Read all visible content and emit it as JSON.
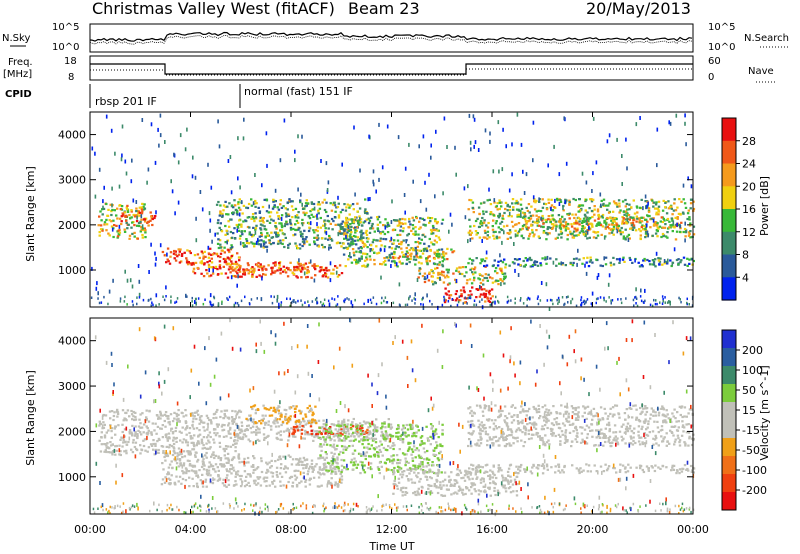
{
  "header": {
    "station": "Christmas Valley West (fitACF)",
    "beam": "Beam 23",
    "date": "20/May/2013"
  },
  "top_panels": {
    "nsky_label": "N.Sky",
    "nsearch_label": "N.Search",
    "nsky_ticks": [
      "10^5",
      "10^0"
    ],
    "nsearch_ticks": [
      "10^5",
      "10^0"
    ],
    "freq_label": "Freq.",
    "freq_unit": "[MHz]",
    "freq_ticks": [
      "18",
      "8"
    ],
    "nave_label": "Nave",
    "nave_ticks": [
      "60",
      "0"
    ],
    "cpid_label": "CPID",
    "cpid_modes": [
      {
        "label": "rbsp 201 IF",
        "start_hour": 0
      },
      {
        "label": "normal (fast) 151 IF",
        "start_hour": 6
      }
    ]
  },
  "colors": {
    "power_scale": [
      "#0022ee",
      "#2a5a9a",
      "#3c8a6a",
      "#38b838",
      "#f0d010",
      "#f59a1c",
      "#f05818",
      "#e81010"
    ],
    "velocity_scale": [
      "#2030d0",
      "#2a5ea0",
      "#3c8a6a",
      "#7ccc3c",
      "#c0c0b8",
      "#c0c0b8",
      "#f0a018",
      "#f07018",
      "#f04010",
      "#e81010"
    ]
  },
  "chart_data": [
    {
      "type": "heatmap",
      "name": "power",
      "ylabel": "Slant Range [km]",
      "xlabel": "",
      "ylim": [
        180,
        4500
      ],
      "xlim": [
        0,
        24
      ],
      "y_ticks": [
        "1000",
        "2000",
        "3000",
        "4000"
      ],
      "colorbar_label": "Power [dB]",
      "colorbar_ticks": [
        "4",
        "8",
        "12",
        "16",
        "20",
        "24",
        "28"
      ],
      "colorbar_range": [
        0,
        32
      ],
      "scatter_bands": [
        {
          "x": [
            0.3,
            2.2
          ],
          "y": [
            1700,
            2500
          ],
          "intensity": 0.55
        },
        {
          "x": [
            1.2,
            2.6
          ],
          "y": [
            2000,
            2300
          ],
          "intensity": 0.85
        },
        {
          "x": [
            2.8,
            6.0
          ],
          "y": [
            1150,
            1500
          ],
          "intensity": 0.8
        },
        {
          "x": [
            4.0,
            10.0
          ],
          "y": [
            850,
            1200
          ],
          "intensity": 0.75
        },
        {
          "x": [
            5.5,
            9.5
          ],
          "y": [
            950,
            1100
          ],
          "intensity": 0.9
        },
        {
          "x": [
            5.0,
            11.0
          ],
          "y": [
            1500,
            2600
          ],
          "intensity": 0.4
        },
        {
          "x": [
            10.0,
            14.0
          ],
          "y": [
            1100,
            2200
          ],
          "intensity": 0.45
        },
        {
          "x": [
            12.0,
            14.5
          ],
          "y": [
            1250,
            1500
          ],
          "intensity": 0.6
        },
        {
          "x": [
            13.0,
            16.5
          ],
          "y": [
            700,
            1100
          ],
          "intensity": 0.55
        },
        {
          "x": [
            14.0,
            16.0
          ],
          "y": [
            300,
            650
          ],
          "intensity": 0.95
        },
        {
          "x": [
            15.0,
            24.0
          ],
          "y": [
            1700,
            2600
          ],
          "intensity": 0.5
        },
        {
          "x": [
            17.0,
            23.5
          ],
          "y": [
            1900,
            2200
          ],
          "intensity": 0.6
        },
        {
          "x": [
            15.0,
            24.0
          ],
          "y": [
            1100,
            1300
          ],
          "intensity": 0.3
        }
      ]
    },
    {
      "type": "heatmap",
      "name": "velocity",
      "ylabel": "Slant Range [km]",
      "xlabel": "Time UT",
      "ylim": [
        180,
        4500
      ],
      "xlim": [
        0,
        24
      ],
      "x_ticks": [
        "00:00",
        "04:00",
        "08:00",
        "12:00",
        "16:00",
        "20:00",
        "00:00"
      ],
      "y_ticks": [
        "1000",
        "2000",
        "3000",
        "4000"
      ],
      "colorbar_label": "Velocity [m s^-1]",
      "colorbar_ticks": [
        "200",
        "100",
        "50",
        "15",
        "-15",
        "-50",
        "-100",
        "-200"
      ],
      "colorbar_range": [
        -250,
        250
      ],
      "scatter_bands": [
        {
          "x": [
            0.3,
            6.0
          ],
          "y": [
            1500,
            2500
          ],
          "velocity": 0
        },
        {
          "x": [
            2.8,
            10.0
          ],
          "y": [
            800,
            1500
          ],
          "velocity": 0
        },
        {
          "x": [
            5.5,
            12.0
          ],
          "y": [
            1800,
            2300
          ],
          "velocity": 0
        },
        {
          "x": [
            8.0,
            11.0
          ],
          "y": [
            1950,
            2150
          ],
          "velocity": -180
        },
        {
          "x": [
            9.0,
            14.0
          ],
          "y": [
            1100,
            2200
          ],
          "velocity": 60
        },
        {
          "x": [
            12.0,
            17.0
          ],
          "y": [
            600,
            1200
          ],
          "velocity": 0
        },
        {
          "x": [
            15.0,
            24.0
          ],
          "y": [
            1700,
            2600
          ],
          "velocity": 0
        },
        {
          "x": [
            15.0,
            24.0
          ],
          "y": [
            1100,
            1300
          ],
          "velocity": 0
        },
        {
          "x": [
            6.0,
            9.0
          ],
          "y": [
            2200,
            2600
          ],
          "velocity": -60
        }
      ]
    }
  ]
}
